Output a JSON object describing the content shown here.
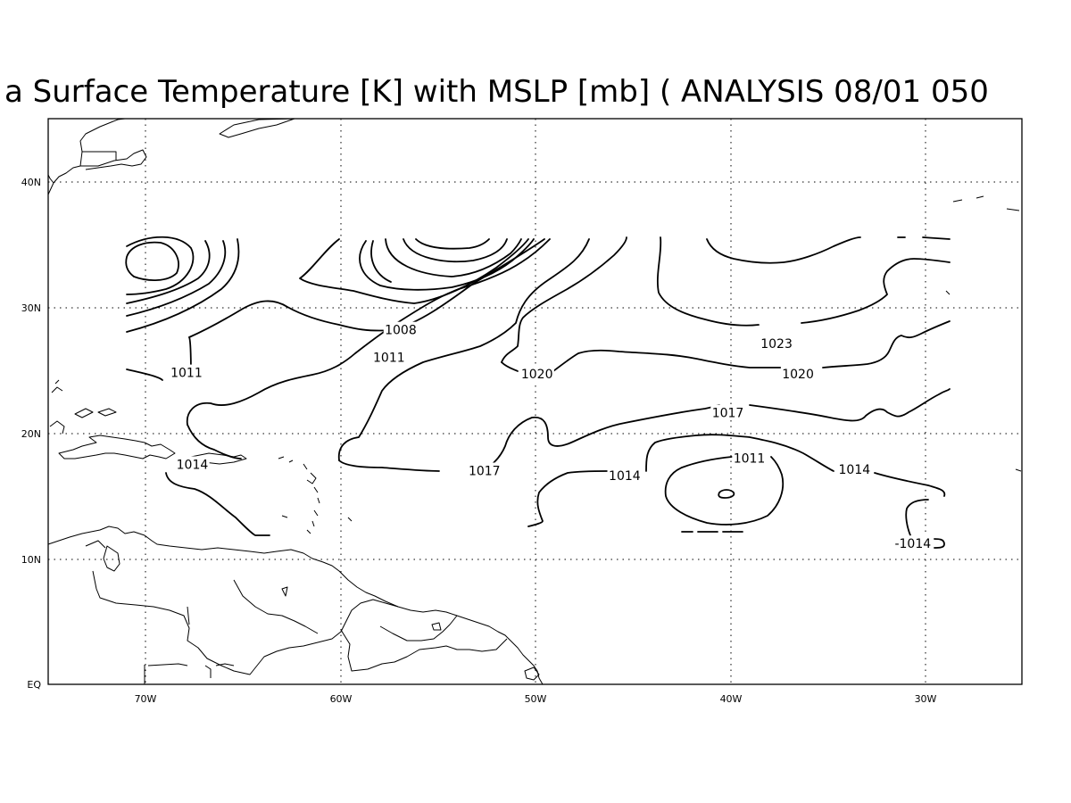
{
  "figure": {
    "title": "a Surface Temperature [K] with MSLP [mb] ( ANALYSIS 08/01 050"
  },
  "axes": {
    "lon_ticks": [
      "70W",
      "60W",
      "50W",
      "40W",
      "30W"
    ],
    "lat_ticks": [
      "40N",
      "30N",
      "20N",
      "10N",
      "EQ"
    ],
    "lon_range": [
      -75,
      -25
    ],
    "lat_range": [
      0,
      45
    ],
    "grid": "dotted"
  },
  "contour_labels": [
    {
      "text": "1011",
      "lon": -67.9,
      "lat": 24.8
    },
    {
      "text": "1008",
      "lon": -56.9,
      "lat": 28.2
    },
    {
      "text": "1011",
      "lon": -57.5,
      "lat": 26.0
    },
    {
      "text": "1020",
      "lon": -49.9,
      "lat": 24.7
    },
    {
      "text": "1023",
      "lon": -37.6,
      "lat": 27.1
    },
    {
      "text": "1020",
      "lon": -36.5,
      "lat": 24.7
    },
    {
      "text": "1017",
      "lon": -40.1,
      "lat": 21.6
    },
    {
      "text": "1014",
      "lon": -67.6,
      "lat": 17.5
    },
    {
      "text": "1017",
      "lon": -52.6,
      "lat": 17.0
    },
    {
      "text": "1014",
      "lon": -45.4,
      "lat": 16.6
    },
    {
      "text": "1011",
      "lon": -39.0,
      "lat": 18.0
    },
    {
      "text": "1014",
      "lon": -33.6,
      "lat": 17.1
    },
    {
      "text": "-1014",
      "lon": -30.6,
      "lat": 11.2
    }
  ]
}
